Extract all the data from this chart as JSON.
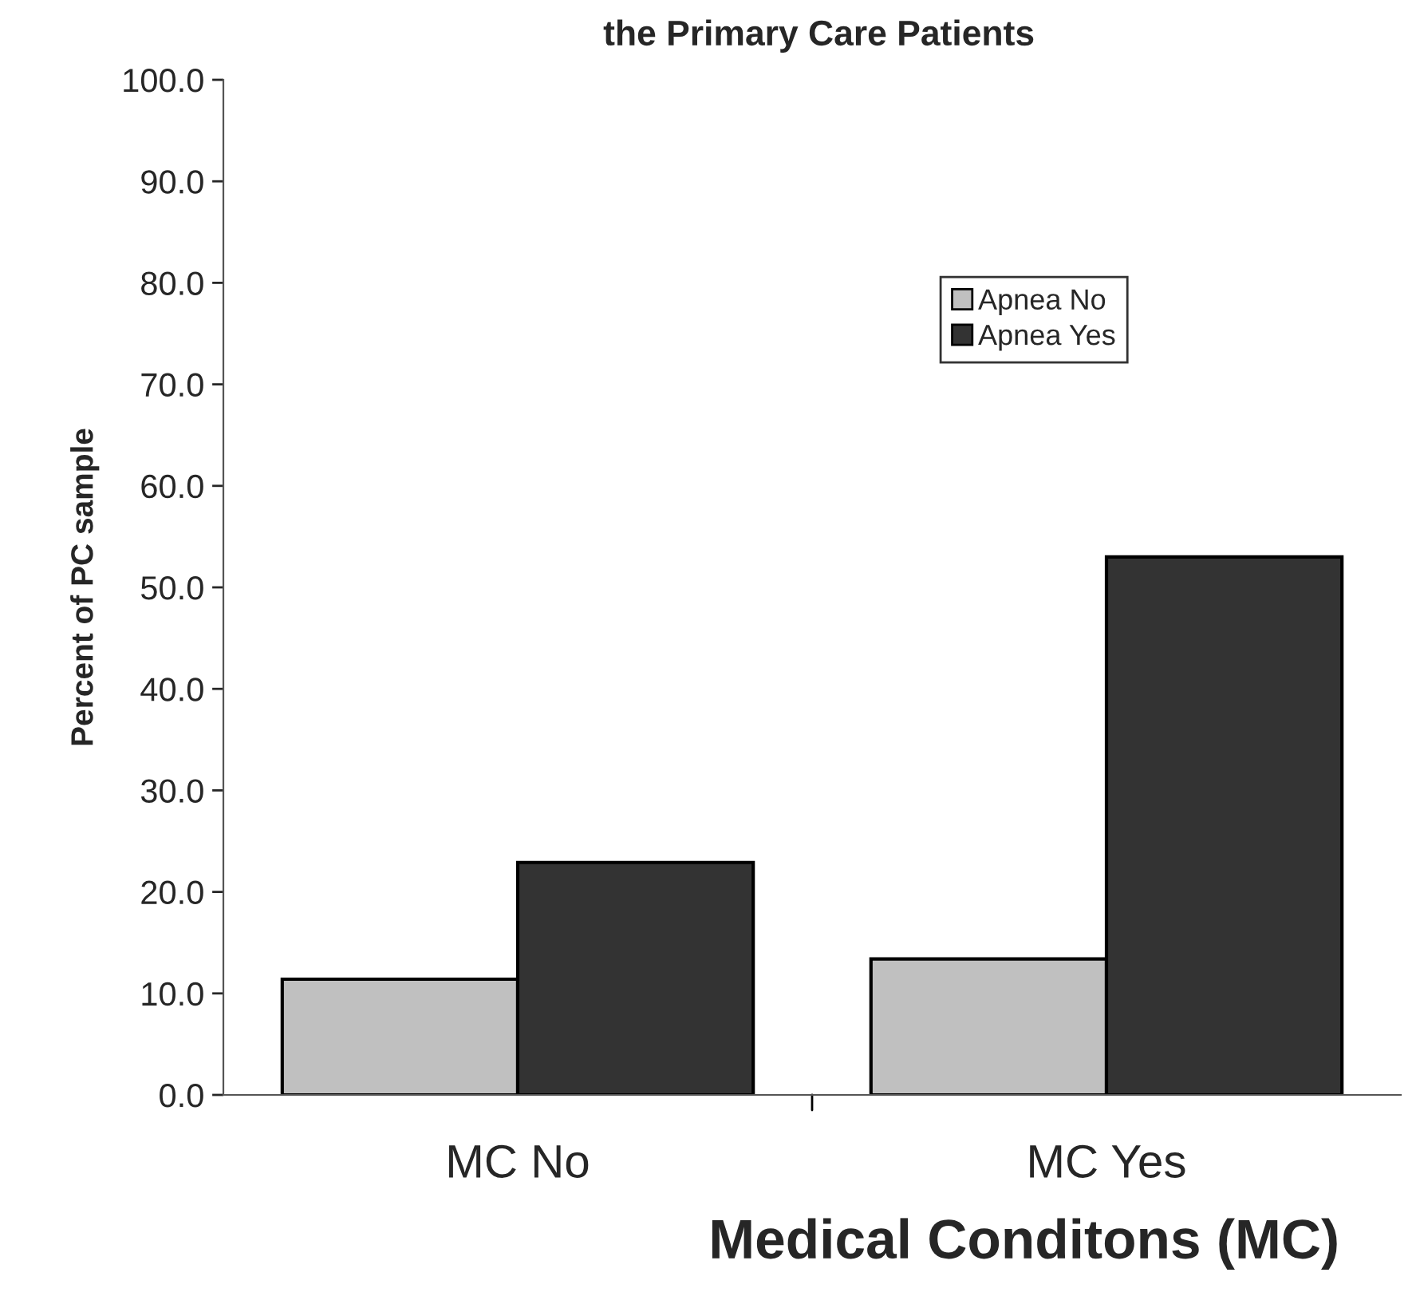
{
  "chart_data": {
    "type": "bar",
    "title": "the Primary Care Patients",
    "xlabel": "Medical Conditons (MC)",
    "ylabel": "Percent of PC sample",
    "categories": [
      "MC No",
      "MC Yes"
    ],
    "series": [
      {
        "name": "Apnea No",
        "color": "#c0c0c0",
        "values": [
          11.4,
          13.4
        ]
      },
      {
        "name": "Apnea Yes",
        "color": "#333333",
        "values": [
          22.9,
          53.0
        ]
      }
    ],
    "ylim": [
      0,
      100
    ],
    "yticks": [
      {
        "value": 0,
        "label": "0.0"
      },
      {
        "value": 10,
        "label": "10.0"
      },
      {
        "value": 20,
        "label": "20.0"
      },
      {
        "value": 30,
        "label": "30.0"
      },
      {
        "value": 40,
        "label": "40.0"
      },
      {
        "value": 50,
        "label": "50.0"
      },
      {
        "value": 60,
        "label": "60.0"
      },
      {
        "value": 70,
        "label": "70.0"
      },
      {
        "value": 80,
        "label": "80.0"
      },
      {
        "value": 90,
        "label": "90.0"
      },
      {
        "value": 100,
        "label": "100.0"
      }
    ],
    "legend": "top right",
    "grid": false
  }
}
